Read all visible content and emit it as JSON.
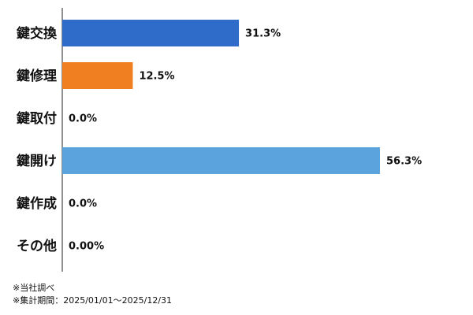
{
  "chart_data": {
    "type": "hbar",
    "categories": [
      "鍵交換",
      "鍵修理",
      "鍵取付",
      "鍵開け",
      "鍵作成",
      "その他"
    ],
    "values": [
      31.3,
      12.5,
      0.0,
      56.3,
      0.0,
      0.0
    ],
    "value_labels": [
      "31.3%",
      "12.5%",
      "0.0%",
      "56.3%",
      "0.0%",
      "0.00%"
    ],
    "colors": [
      "#2f6bc9",
      "#f07f22",
      null,
      "#5ba3dc",
      null,
      null
    ],
    "notes": [
      "※当社調べ",
      "※集計期間：2025/01/01～2025/12/31"
    ]
  }
}
